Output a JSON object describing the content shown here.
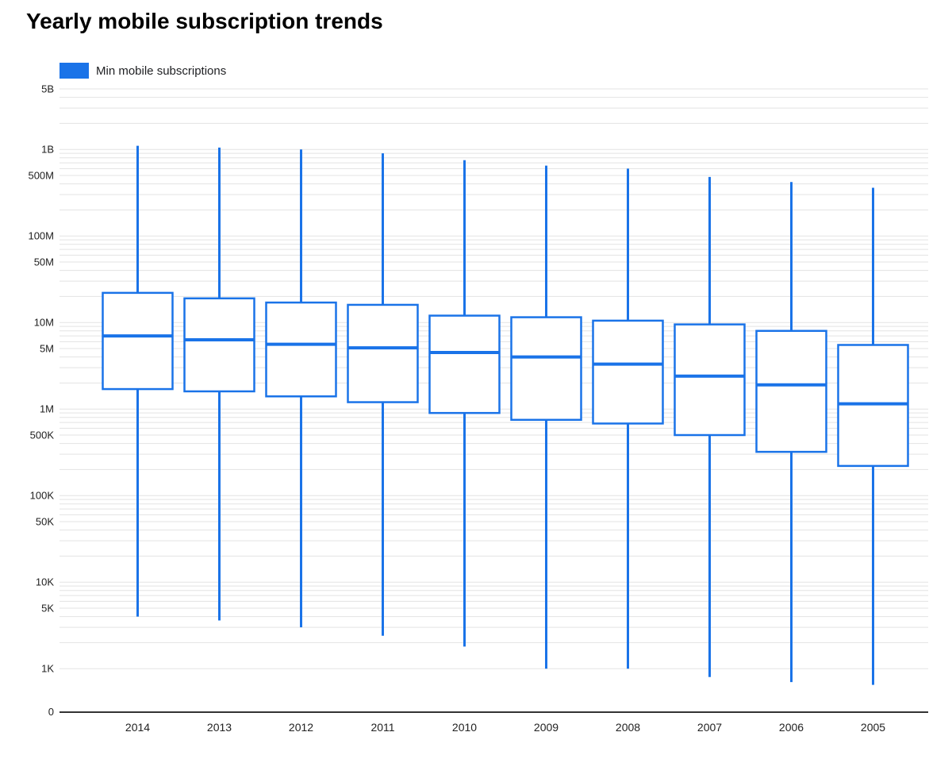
{
  "title": "Yearly mobile subscription trends",
  "legend": {
    "label": "Min mobile subscriptions",
    "color": "#1a73e8"
  },
  "chart_data": {
    "type": "boxplot",
    "title": "Yearly mobile subscription trends",
    "legend_position": "top-left",
    "grid": true,
    "y_axis": {
      "scale": "log",
      "range_top_value": 5000000000,
      "baseline_label": "0",
      "ticks": [
        {
          "label": "5B",
          "value": 5000000000
        },
        {
          "label": "1B",
          "value": 1000000000
        },
        {
          "label": "500M",
          "value": 500000000
        },
        {
          "label": "100M",
          "value": 100000000
        },
        {
          "label": "50M",
          "value": 50000000
        },
        {
          "label": "10M",
          "value": 10000000
        },
        {
          "label": "5M",
          "value": 5000000
        },
        {
          "label": "1M",
          "value": 1000000
        },
        {
          "label": "500K",
          "value": 500000
        },
        {
          "label": "100K",
          "value": 100000
        },
        {
          "label": "50K",
          "value": 50000
        },
        {
          "label": "10K",
          "value": 10000
        },
        {
          "label": "5K",
          "value": 5000
        },
        {
          "label": "1K",
          "value": 1000
        }
      ]
    },
    "categories": [
      "2014",
      "2013",
      "2012",
      "2011",
      "2010",
      "2009",
      "2008",
      "2007",
      "2006",
      "2005"
    ],
    "series": [
      {
        "name": "Min mobile subscriptions",
        "color": "#1a73e8",
        "boxes": [
          {
            "min": 4000,
            "q1": 1700000,
            "median": 7000000,
            "q3": 22000000,
            "max": 1100000000
          },
          {
            "min": 3600,
            "q1": 1600000,
            "median": 6300000,
            "q3": 19000000,
            "max": 1050000000
          },
          {
            "min": 3000,
            "q1": 1400000,
            "median": 5600000,
            "q3": 17000000,
            "max": 1000000000
          },
          {
            "min": 2400,
            "q1": 1200000,
            "median": 5100000,
            "q3": 16000000,
            "max": 900000000
          },
          {
            "min": 1800,
            "q1": 900000,
            "median": 4500000,
            "q3": 12000000,
            "max": 750000000
          },
          {
            "min": 1000,
            "q1": 750000,
            "median": 4000000,
            "q3": 11500000,
            "max": 650000000
          },
          {
            "min": 1000,
            "q1": 680000,
            "median": 3300000,
            "q3": 10500000,
            "max": 600000000
          },
          {
            "min": 800,
            "q1": 500000,
            "median": 2400000,
            "q3": 9500000,
            "max": 480000000
          },
          {
            "min": 700,
            "q1": 320000,
            "median": 1900000,
            "q3": 8000000,
            "max": 420000000
          },
          {
            "min": 650,
            "q1": 220000,
            "median": 1150000,
            "q3": 5500000,
            "max": 360000000
          }
        ]
      }
    ]
  }
}
